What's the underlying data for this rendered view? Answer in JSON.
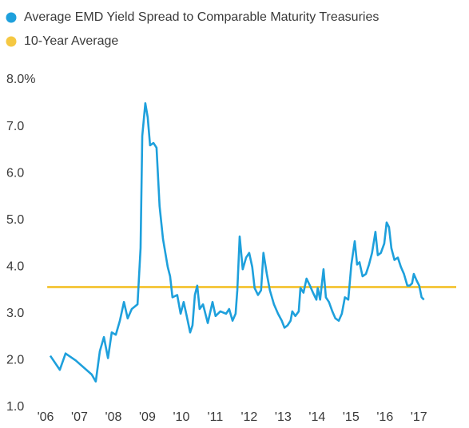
{
  "chart_data": {
    "type": "line",
    "series": [
      {
        "name": "Average EMD Yield Spread to Comparable Maturity Treasuries",
        "color": "#1ea0dc",
        "x": [
          2006.14,
          2006.42,
          2006.59,
          2006.89,
          2007.36,
          2007.48,
          2007.6,
          2007.72,
          2007.84,
          2007.95,
          2008.07,
          2008.19,
          2008.31,
          2008.42,
          2008.54,
          2008.71,
          2008.8,
          2008.85,
          2008.94,
          2009.01,
          2009.08,
          2009.18,
          2009.27,
          2009.36,
          2009.46,
          2009.6,
          2009.67,
          2009.74,
          2009.88,
          2009.98,
          2010.07,
          2010.16,
          2010.26,
          2010.33,
          2010.4,
          2010.47,
          2010.54,
          2010.64,
          2010.78,
          2010.92,
          2011.01,
          2011.15,
          2011.32,
          2011.41,
          2011.51,
          2011.6,
          2011.65,
          2011.72,
          2011.81,
          2011.91,
          2012.0,
          2012.09,
          2012.16,
          2012.26,
          2012.35,
          2012.42,
          2012.52,
          2012.61,
          2012.73,
          2012.85,
          2012.96,
          2013.04,
          2013.13,
          2013.22,
          2013.27,
          2013.36,
          2013.46,
          2013.51,
          2013.6,
          2013.69,
          2013.79,
          2013.88,
          2013.98,
          2014.02,
          2014.09,
          2014.19,
          2014.26,
          2014.35,
          2014.45,
          2014.54,
          2014.64,
          2014.73,
          2014.82,
          2014.92,
          2015.01,
          2015.11,
          2015.18,
          2015.25,
          2015.34,
          2015.44,
          2015.53,
          2015.62,
          2015.72,
          2015.79,
          2015.88,
          2015.98,
          2016.05,
          2016.12,
          2016.19,
          2016.28,
          2016.38,
          2016.47,
          2016.56,
          2016.66,
          2016.73,
          2016.8,
          2016.85,
          2016.94,
          2017.01,
          2017.08,
          2017.15
        ],
        "values": [
          2.1,
          1.8,
          2.15,
          2.0,
          1.7,
          1.55,
          2.2,
          2.5,
          2.05,
          2.6,
          2.55,
          2.85,
          3.25,
          2.9,
          3.1,
          3.2,
          4.4,
          6.8,
          7.5,
          7.2,
          6.6,
          6.65,
          6.55,
          5.3,
          4.6,
          4.0,
          3.8,
          3.35,
          3.4,
          3.0,
          3.25,
          2.95,
          2.6,
          2.75,
          3.4,
          3.6,
          3.1,
          3.2,
          2.8,
          3.25,
          2.95,
          3.05,
          3.0,
          3.1,
          2.85,
          3.0,
          3.5,
          4.65,
          3.95,
          4.2,
          4.3,
          4.0,
          3.55,
          3.4,
          3.5,
          4.3,
          3.85,
          3.5,
          3.2,
          3.0,
          2.85,
          2.7,
          2.75,
          2.85,
          3.05,
          2.95,
          3.05,
          3.55,
          3.45,
          3.75,
          3.6,
          3.45,
          3.3,
          3.55,
          3.3,
          3.95,
          3.35,
          3.25,
          3.05,
          2.9,
          2.85,
          3.0,
          3.35,
          3.3,
          4.05,
          4.55,
          4.05,
          4.1,
          3.8,
          3.85,
          4.05,
          4.3,
          4.75,
          4.25,
          4.3,
          4.5,
          4.95,
          4.85,
          4.4,
          4.15,
          4.2,
          4.0,
          3.85,
          3.6,
          3.6,
          3.65,
          3.85,
          3.7,
          3.6,
          3.35,
          3.3
        ]
      },
      {
        "name": "10-Year Average",
        "color": "#f5c842",
        "x": [
          2006.05,
          2018.1
        ],
        "values": [
          3.57,
          3.57
        ]
      }
    ],
    "xlim": [
      2005.9,
      2018.1
    ],
    "xticks": [
      {
        "value": 2006,
        "label": "'06"
      },
      {
        "value": 2007,
        "label": "'07"
      },
      {
        "value": 2008,
        "label": "'08"
      },
      {
        "value": 2009,
        "label": "'09"
      },
      {
        "value": 2010,
        "label": "'10"
      },
      {
        "value": 2011,
        "label": "'11"
      },
      {
        "value": 2012,
        "label": "'12"
      },
      {
        "value": 2013,
        "label": "'13"
      },
      {
        "value": 2014,
        "label": "'14"
      },
      {
        "value": 2015,
        "label": "'15"
      },
      {
        "value": 2016,
        "label": "'16"
      },
      {
        "value": 2017,
        "label": "'17"
      }
    ],
    "ylim": [
      1,
      8
    ],
    "yticks": [
      {
        "value": 1,
        "label": "1.0"
      },
      {
        "value": 2,
        "label": "2.0"
      },
      {
        "value": 3,
        "label": "3.0"
      },
      {
        "value": 4,
        "label": "4.0"
      },
      {
        "value": 5,
        "label": "5.0"
      },
      {
        "value": 6,
        "label": "6.0"
      },
      {
        "value": 7,
        "label": "7.0"
      },
      {
        "value": 8,
        "label": "8.0%"
      }
    ],
    "grid": false
  }
}
